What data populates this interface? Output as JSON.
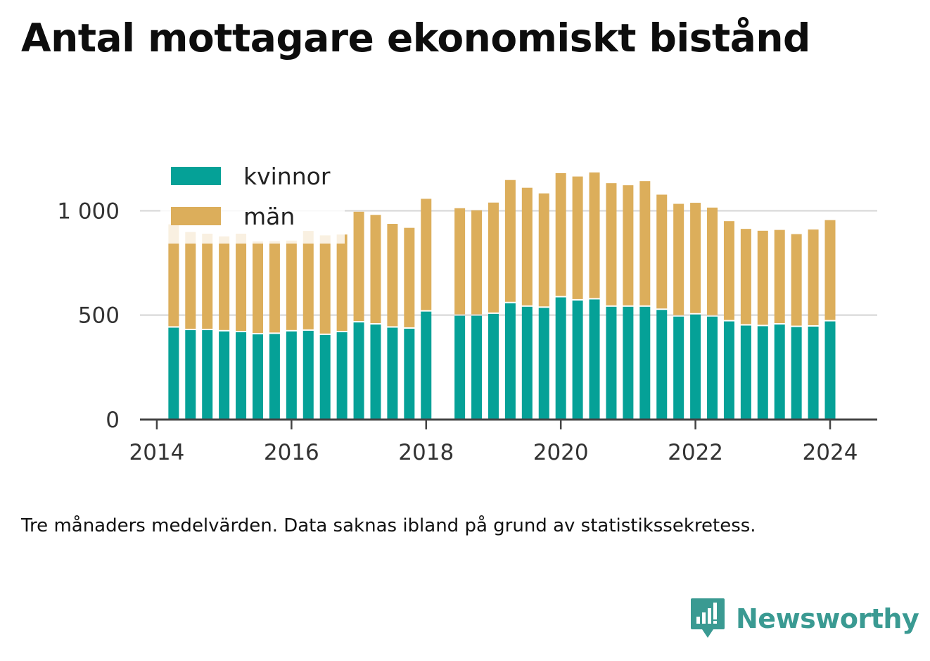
{
  "title": "Antal mottagare ekonomiskt bistånd",
  "note": "Tre månaders medelvärden. Data saknas ibland på grund av statistikssekretess.",
  "brand": {
    "name": "Newsworthy",
    "icon": "newsworthy-logo-icon",
    "color": "#3a9a92"
  },
  "colors": {
    "kvinnor": "#05a197",
    "man": "#dcae5b",
    "grid": "#dddddd",
    "axis": "#444444"
  },
  "chart_data": {
    "type": "bar",
    "stacked": true,
    "title": "Antal mottagare ekonomiskt bistånd",
    "xlabel": "",
    "ylabel": "",
    "ylim": [
      0,
      1200
    ],
    "xlim": [
      2013.75,
      2024.7
    ],
    "yticks": [
      {
        "value": 0,
        "label": "0"
      },
      {
        "value": 500,
        "label": "500"
      },
      {
        "value": 1000,
        "label": "1 000"
      }
    ],
    "xticks": [
      {
        "value": 2014,
        "label": "2014"
      },
      {
        "value": 2016,
        "label": "2016"
      },
      {
        "value": 2018,
        "label": "2018"
      },
      {
        "value": 2020,
        "label": "2020"
      },
      {
        "value": 2022,
        "label": "2022"
      },
      {
        "value": 2024,
        "label": "2024"
      }
    ],
    "grid": true,
    "legend": "top-left",
    "x": [
      2014.25,
      2014.5,
      2014.75,
      2015.0,
      2015.25,
      2015.5,
      2015.75,
      2016.0,
      2016.25,
      2016.5,
      2016.75,
      2017.0,
      2017.25,
      2017.5,
      2017.75,
      2018.0,
      2018.5,
      2018.75,
      2019.0,
      2019.25,
      2019.5,
      2019.75,
      2020.0,
      2020.25,
      2020.5,
      2020.75,
      2021.0,
      2021.25,
      2021.5,
      2021.75,
      2022.0,
      2022.25,
      2022.5,
      2022.75,
      2023.0,
      2023.25,
      2023.5,
      2023.75,
      2024.0
    ],
    "series": [
      {
        "name": "kvinnor",
        "values": [
          440,
          428,
          428,
          422,
          418,
          408,
          410,
          422,
          425,
          405,
          418,
          465,
          455,
          440,
          435,
          517,
          497,
          497,
          506,
          557,
          540,
          535,
          585,
          570,
          575,
          540,
          540,
          540,
          525,
          493,
          503,
          493,
          470,
          450,
          447,
          455,
          443,
          445,
          470
        ]
      },
      {
        "name": "män",
        "values": [
          495,
          470,
          462,
          455,
          472,
          445,
          445,
          435,
          478,
          477,
          468,
          530,
          525,
          497,
          483,
          540,
          515,
          505,
          533,
          590,
          570,
          548,
          595,
          594,
          608,
          592,
          582,
          602,
          552,
          540,
          535,
          522,
          480,
          463,
          457,
          453,
          445,
          465,
          485
        ]
      }
    ]
  }
}
